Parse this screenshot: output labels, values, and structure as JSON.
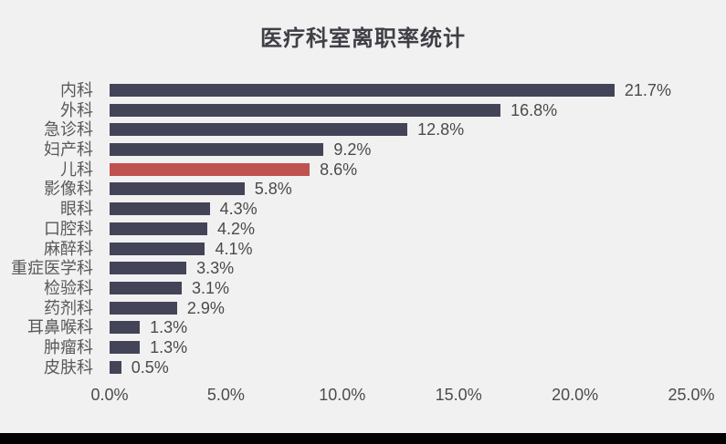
{
  "chart_data": {
    "type": "bar",
    "orientation": "horizontal",
    "title": "医疗科室离职率统计",
    "categories": [
      "内科",
      "外科",
      "急诊科",
      "妇产科",
      "儿科",
      "影像科",
      "眼科",
      "口腔科",
      "麻醉科",
      "重症医学科",
      "检验科",
      "药剂科",
      "耳鼻喉科",
      "肿瘤科",
      "皮肤科"
    ],
    "values": [
      21.7,
      16.8,
      12.8,
      9.2,
      8.6,
      5.8,
      4.3,
      4.2,
      4.1,
      3.3,
      3.1,
      2.9,
      1.3,
      1.3,
      0.5
    ],
    "value_labels": [
      "21.7%",
      "16.8%",
      "12.8%",
      "9.2%",
      "8.6%",
      "5.8%",
      "4.3%",
      "4.2%",
      "4.1%",
      "3.3%",
      "3.1%",
      "2.9%",
      "1.3%",
      "1.3%",
      "0.5%"
    ],
    "highlight_index": 4,
    "xlim": [
      0,
      25
    ],
    "x_ticks": [
      "0.0%",
      "5.0%",
      "10.0%",
      "15.0%",
      "20.0%",
      "25.0%"
    ],
    "xlabel": "",
    "ylabel": "",
    "grid": false,
    "legend": "none",
    "colors": {
      "bar": "#434457",
      "highlight_bar": "#bf524e",
      "background": "#f1f1f2",
      "title_text": "#3f3f46",
      "category_text": "#595959",
      "value_text": "#4a4a4a",
      "tick_text": "#4c4c4c",
      "bottom_border": "#000000"
    }
  }
}
